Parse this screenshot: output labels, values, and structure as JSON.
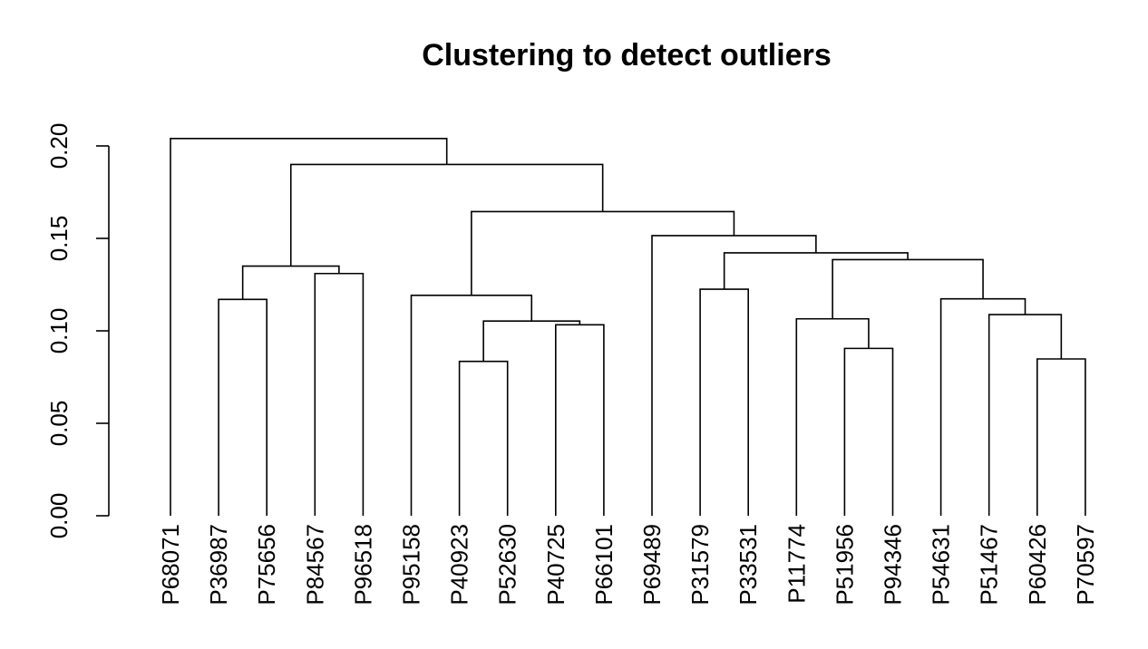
{
  "chart_data": {
    "type": "dendrogram",
    "title": "Clustering to detect outliers",
    "ylim": [
      0,
      0.2
    ],
    "yticks": [
      0.0,
      0.05,
      0.1,
      0.15,
      0.2
    ],
    "ytick_labels": [
      "0.00",
      "0.05",
      "0.10",
      "0.15",
      "0.20"
    ],
    "leaves": [
      "P68071",
      "P36987",
      "P75656",
      "P84567",
      "P96518",
      "P95158",
      "P40923",
      "P52630",
      "P40725",
      "P66101",
      "P69489",
      "P31579",
      "P33531",
      "P11774",
      "P51956",
      "P94346",
      "P54631",
      "P51467",
      "P60426",
      "P70597"
    ],
    "merges": [
      {
        "left": "L7",
        "right": "L8",
        "height": 0.0835
      },
      {
        "left": "L19",
        "right": "L20",
        "height": 0.0848
      },
      {
        "left": "L15",
        "right": "L16",
        "height": 0.0905
      },
      {
        "left": "L9",
        "right": "L10",
        "height": 0.1033
      },
      {
        "left": "C1",
        "right": "C4",
        "height": 0.1053
      },
      {
        "left": "L14",
        "right": "C3",
        "height": 0.1065
      },
      {
        "left": "L18",
        "right": "C2",
        "height": 0.1088
      },
      {
        "left": "L2",
        "right": "L3",
        "height": 0.117
      },
      {
        "left": "L17",
        "right": "C7",
        "height": 0.1173
      },
      {
        "left": "L6",
        "right": "C5",
        "height": 0.1192
      },
      {
        "left": "L12",
        "right": "L13",
        "height": 0.1225
      },
      {
        "left": "L4",
        "right": "L5",
        "height": 0.131
      },
      {
        "left": "C8",
        "right": "C12",
        "height": 0.135
      },
      {
        "left": "C6",
        "right": "C9",
        "height": 0.1385
      },
      {
        "left": "C11",
        "right": "C14",
        "height": 0.1422
      },
      {
        "left": "L11",
        "right": "C15",
        "height": 0.1515
      },
      {
        "left": "C10",
        "right": "C16",
        "height": 0.1645
      },
      {
        "left": "C13",
        "right": "C17",
        "height": 0.19
      },
      {
        "left": "L1",
        "right": "C18",
        "height": 0.204
      }
    ]
  }
}
